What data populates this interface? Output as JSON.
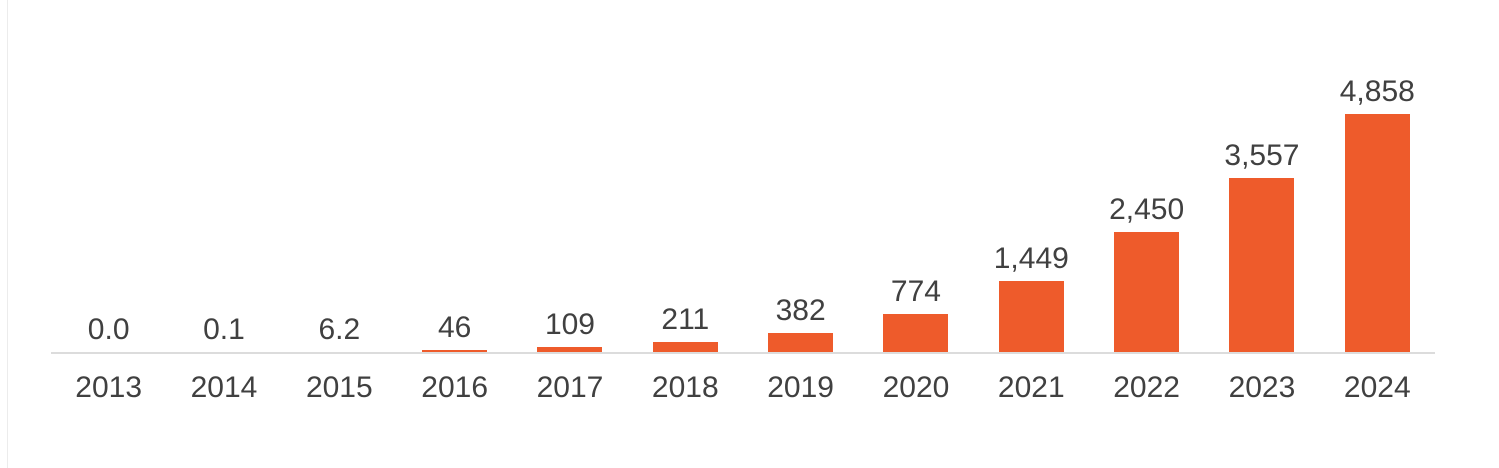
{
  "window": {
    "background": "#FFFFFF",
    "page_edge_color": "#ECECEC"
  },
  "chart_data": {
    "type": "bar",
    "title": "",
    "xlabel": "",
    "ylabel": "",
    "categories": [
      "2013",
      "2014",
      "2015",
      "2016",
      "2017",
      "2018",
      "2019",
      "2020",
      "2021",
      "2022",
      "2023",
      "2024"
    ],
    "values": [
      0.0,
      0.1,
      6.2,
      46,
      109,
      211,
      382,
      774,
      1449,
      2450,
      3557,
      4858
    ],
    "data_labels": [
      "0.0",
      "0.1",
      "6.2",
      "46",
      "109",
      "211",
      "382",
      "774",
      "1,449",
      "2,450",
      "3,557",
      "4,858"
    ],
    "ylim": [
      0,
      4858
    ],
    "grid": false,
    "legend": "none",
    "y_axis_visible": false,
    "x_axis_line_visible": true,
    "bar_color": "#EE5B2B",
    "data_label_color": "#404040",
    "axis_label_color": "#404040",
    "axis_line_color": "#DCDCDC"
  }
}
